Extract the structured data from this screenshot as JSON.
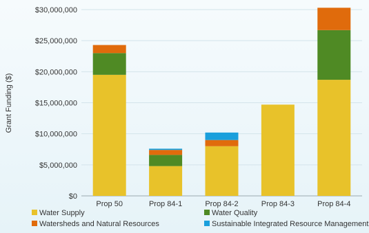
{
  "chart_data": {
    "type": "bar",
    "stacked": true,
    "title": "",
    "xlabel": "",
    "ylabel": "Grant Funding ($)",
    "ylim": [
      0,
      30000000
    ],
    "yticks": [
      "$0",
      "$5,000,000",
      "$10,000,000",
      "$15,000,000",
      "$20,000,000",
      "$25,000,000",
      "$30,000,000"
    ],
    "categories": [
      "Prop 50",
      "Prop 84-1",
      "Prop 84-2",
      "Prop 84-3",
      "Prop 84-4"
    ],
    "series": [
      {
        "name": "Water Supply",
        "color": "#e8c22a",
        "values": [
          19500000,
          4800000,
          8000000,
          14700000,
          18700000
        ]
      },
      {
        "name": "Water Quality",
        "color": "#4f8a24",
        "values": [
          3500000,
          1800000,
          0,
          0,
          8000000
        ]
      },
      {
        "name": "Watersheds and Natural Resources",
        "color": "#e06b0c",
        "values": [
          1300000,
          800000,
          1000000,
          0,
          3600000
        ]
      },
      {
        "name": "Sustainable Integrated Resource Management",
        "color": "#1a9fdc",
        "values": [
          0,
          200000,
          1200000,
          0,
          0
        ]
      }
    ],
    "grid": true,
    "legend_position": "bottom"
  }
}
